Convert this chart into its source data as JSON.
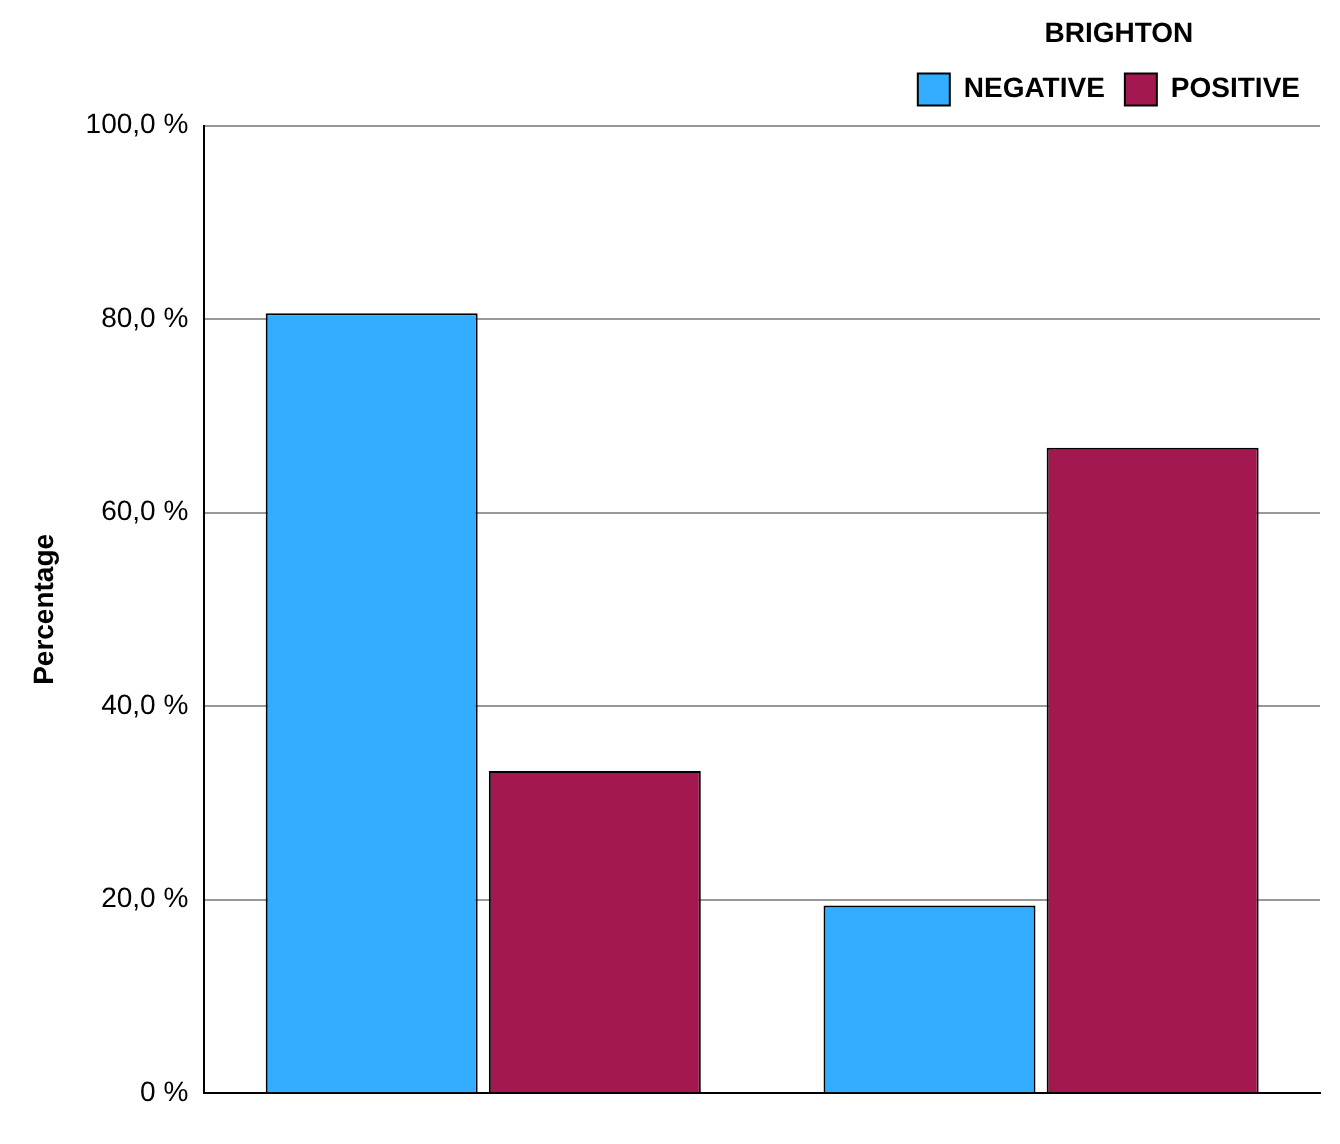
{
  "chart_data": {
    "type": "bar",
    "ylabel": "Percentage",
    "legend_title": "BRIGHTON",
    "categories": [
      null,
      null
    ],
    "series": [
      {
        "name": "NEGATIVE",
        "color": "#33adff",
        "values": [
          80.6,
          19.4
        ]
      },
      {
        "name": "POSITIVE",
        "color": "#a3194f",
        "values": [
          33.3,
          66.7
        ]
      }
    ],
    "ylim": [
      0,
      100
    ],
    "yticks": [
      {
        "value": 0,
        "label": "0 %"
      },
      {
        "value": 20,
        "label": "20,0 %"
      },
      {
        "value": 40,
        "label": "40,0 %"
      },
      {
        "value": 60,
        "label": "60,0 %"
      },
      {
        "value": 80,
        "label": "80,0 %"
      },
      {
        "value": 100,
        "label": "100,0 %"
      }
    ],
    "grid": "y",
    "legend": "top right"
  }
}
